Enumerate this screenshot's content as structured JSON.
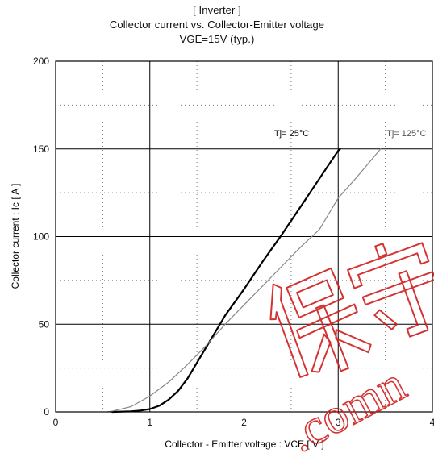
{
  "chart_data": {
    "type": "line",
    "title_lines": [
      "[ Inverter ]",
      "Collector current  vs.  Collector-Emitter voltage",
      "VGE=15V  (typ.)"
    ],
    "xlabel": "Collector - Emitter voltage  :  VCE [ V ]",
    "ylabel": "Collector current  :  Ic [ A ]",
    "xlim": [
      0,
      4
    ],
    "ylim": [
      0,
      200
    ],
    "x_ticks": [
      0,
      1,
      2,
      3,
      4
    ],
    "y_ticks": [
      0,
      50,
      100,
      150,
      200
    ],
    "grid": true,
    "series": [
      {
        "name": "Tj= 25°C",
        "color": "#000000",
        "points": [
          [
            0.6,
            0
          ],
          [
            0.8,
            0.3
          ],
          [
            0.9,
            0.8
          ],
          [
            1.0,
            1.6
          ],
          [
            1.1,
            3.5
          ],
          [
            1.2,
            7
          ],
          [
            1.3,
            12
          ],
          [
            1.4,
            19
          ],
          [
            1.5,
            28
          ],
          [
            1.6,
            37
          ],
          [
            1.7,
            46
          ],
          [
            1.8,
            55
          ],
          [
            2.0,
            70
          ],
          [
            2.2,
            86
          ],
          [
            2.4,
            101
          ],
          [
            2.6,
            117
          ],
          [
            2.8,
            133
          ],
          [
            3.0,
            149
          ],
          [
            3.02,
            150
          ]
        ]
      },
      {
        "name": "Tj= 125°C",
        "color": "#888888",
        "points": [
          [
            0.55,
            0
          ],
          [
            0.6,
            0.4
          ],
          [
            0.8,
            3
          ],
          [
            1.0,
            9
          ],
          [
            1.2,
            17
          ],
          [
            1.4,
            27
          ],
          [
            1.6,
            38
          ],
          [
            1.8,
            50
          ],
          [
            2.0,
            61
          ],
          [
            2.2,
            72
          ],
          [
            2.4,
            83
          ],
          [
            2.6,
            94
          ],
          [
            2.8,
            104
          ],
          [
            3.0,
            122
          ],
          [
            3.2,
            134
          ],
          [
            3.45,
            150
          ]
        ]
      }
    ]
  },
  "watermark": "保守 .comn"
}
